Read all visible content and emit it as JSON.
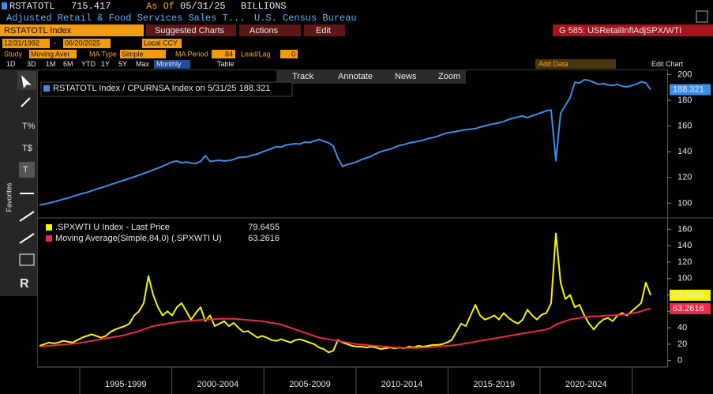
{
  "header": {
    "ticker": "RSTATOTL",
    "last": 715.417,
    "as_of_label": "As Of",
    "as_of": "05/31/25",
    "units": "BILLIONS",
    "description": "Adjusted Retail & Food Services Sales T...",
    "source": "U.S. Census Bureau"
  },
  "toolbar": {
    "security": "RSTATOTL Index",
    "menus": [
      "Suggested Charts",
      "Actions",
      "Edit"
    ],
    "chart_id": "G 585: USRetailInflAdjSPX/WTI"
  },
  "controls": {
    "start_date": "12/31/1992",
    "end_date": "06/20/2025",
    "currency": "Local CCY",
    "study_label": "Study",
    "study": "Moving Aver",
    "ma_type_label": "MA Type",
    "ma_type": "Simple",
    "ma_period_label": "MA Period",
    "ma_period": 84,
    "lead_lag_label": "Lead/Lag",
    "lead_lag": 0,
    "ranges": [
      "1D",
      "3D",
      "1M",
      "6M",
      "YTD",
      "1Y",
      "5Y",
      "Max"
    ],
    "frequency": "Monthly",
    "table": "Table",
    "add_data": "Add Data",
    "edit_chart": "Edit Chart"
  },
  "chart_tools": [
    "Track",
    "Annotate",
    "News",
    "Zoom"
  ],
  "sidebar": {
    "favorites": "Favorites"
  },
  "chart_data": [
    {
      "type": "line",
      "legend": "upper left",
      "ylim": [
        91,
        204
      ],
      "yticks": [
        100,
        120,
        140,
        160,
        180,
        200
      ],
      "series": [
        {
          "name": "RSTATOTL Index / CPURNSA Index on 5/31/25",
          "color": "#3d8ee8",
          "values": [
            98.5,
            99.2,
            100.1,
            101.0,
            102.0,
            103.1,
            104.0,
            105.2,
            106.3,
            107.5,
            108.4,
            109.6,
            110.9,
            112.0,
            113.2,
            114.5,
            115.6,
            116.9,
            118.0,
            119.3,
            120.5,
            121.8,
            123.2,
            124.5,
            125.9,
            127.3,
            128.8,
            130.4,
            132.0,
            132.8,
            131.5,
            132.0,
            131.2,
            130.8,
            132.5,
            137.0,
            132.5,
            133.0,
            133.4,
            132.8,
            133.2,
            134.0,
            135.5,
            135.8,
            136.2,
            137.5,
            138.2,
            139.8,
            141.2,
            142.5,
            144.0,
            143.6,
            145.2,
            145.8,
            146.3,
            146.0,
            147.5,
            147.2,
            148.4,
            149.6,
            148.2,
            147.0,
            144.5,
            135.0,
            128.5,
            130.2,
            131.0,
            132.3,
            134.0,
            135.2,
            136.5,
            138.4,
            140.0,
            141.2,
            142.0,
            143.5,
            145.0,
            145.6,
            146.8,
            147.5,
            148.2,
            149.0,
            150.3,
            151.0,
            152.0,
            153.5,
            154.6,
            155.2,
            155.8,
            156.5,
            157.2,
            157.6,
            158.0,
            159.2,
            160.1,
            161.0,
            161.8,
            162.5,
            163.6,
            165.0,
            166.2,
            167.0,
            167.8,
            166.5,
            168.0,
            169.2,
            170.5,
            171.8,
            172.5,
            133.0,
            170.0,
            176.0,
            182.0,
            194.0,
            193.5,
            196.0,
            195.5,
            194.0,
            192.5,
            193.0,
            192.0,
            191.5,
            192.5,
            191.0,
            190.5,
            191.5,
            192.5,
            194.5,
            193.5,
            188.321
          ]
        }
      ]
    },
    {
      "type": "line",
      "legend": "upper left",
      "ylim": [
        -8,
        170
      ],
      "yticks": [
        0,
        20,
        40,
        60,
        80,
        100,
        120,
        140,
        160
      ],
      "x_labels": [
        "1995-1999",
        "2000-2004",
        "2005-2009",
        "2010-2014",
        "2015-2019",
        "2020-2024"
      ],
      "series": [
        {
          "name": ".SPXWTI U Index - Last Price",
          "color": "#f5f500",
          "values": [
            18,
            20,
            22,
            21,
            22,
            24,
            23,
            22,
            25,
            28,
            30,
            32,
            30,
            28,
            30,
            35,
            38,
            40,
            42,
            45,
            55,
            60,
            70,
            103,
            80,
            65,
            55,
            60,
            55,
            65,
            70,
            60,
            50,
            58,
            65,
            48,
            55,
            42,
            45,
            48,
            42,
            46,
            40,
            35,
            36,
            32,
            28,
            30,
            28,
            25,
            24,
            26,
            24,
            22,
            25,
            26,
            24,
            22,
            20,
            16,
            14,
            10,
            12,
            25,
            22,
            20,
            18,
            17,
            17,
            16,
            17,
            16,
            14,
            15,
            16,
            15,
            16,
            15,
            17,
            16,
            18,
            17,
            18,
            19,
            19,
            20,
            22,
            25,
            35,
            45,
            42,
            55,
            68,
            55,
            50,
            52,
            55,
            50,
            58,
            52,
            48,
            45,
            50,
            62,
            55,
            50,
            56,
            58,
            70,
            155,
            95,
            75,
            80,
            65,
            68,
            55,
            45,
            38,
            45,
            50,
            52,
            48,
            55,
            58,
            55,
            60,
            65,
            70,
            95,
            79.6455
          ]
        },
        {
          "name": "Moving Average(Simple,84,0) (.SPXWTI U)",
          "color": "#f0284a",
          "values": [
            17,
            17.5,
            18,
            18.5,
            19,
            19.5,
            20,
            20.5,
            21,
            22,
            23,
            24,
            25,
            26,
            27,
            28,
            29,
            30,
            31,
            33,
            34,
            36,
            38,
            40,
            42,
            43,
            44,
            45,
            46,
            47,
            47.5,
            48,
            48.5,
            49,
            49.5,
            50,
            50,
            50.5,
            51,
            51,
            51,
            51,
            50.5,
            50,
            49.5,
            49,
            48.5,
            48,
            47,
            46,
            45,
            44,
            42,
            40,
            38,
            36,
            34,
            32,
            30,
            28,
            27,
            26,
            25,
            24,
            23,
            22,
            21,
            20,
            19.5,
            19,
            18.5,
            18,
            17.5,
            17,
            16.5,
            16,
            16,
            15.5,
            15.5,
            15.5,
            15.5,
            16,
            16,
            16.5,
            17,
            17.5,
            18,
            18.5,
            19,
            20,
            21,
            22,
            23,
            24,
            25,
            26,
            27,
            28,
            29,
            30,
            31,
            32,
            33,
            34,
            35,
            36,
            37,
            38,
            40,
            44,
            46,
            48,
            50,
            51,
            52,
            53,
            53.5,
            54,
            54,
            54.5,
            55,
            55,
            55.5,
            56,
            56.5,
            57.5,
            58.5,
            60,
            62,
            63.2616
          ]
        }
      ]
    }
  ]
}
